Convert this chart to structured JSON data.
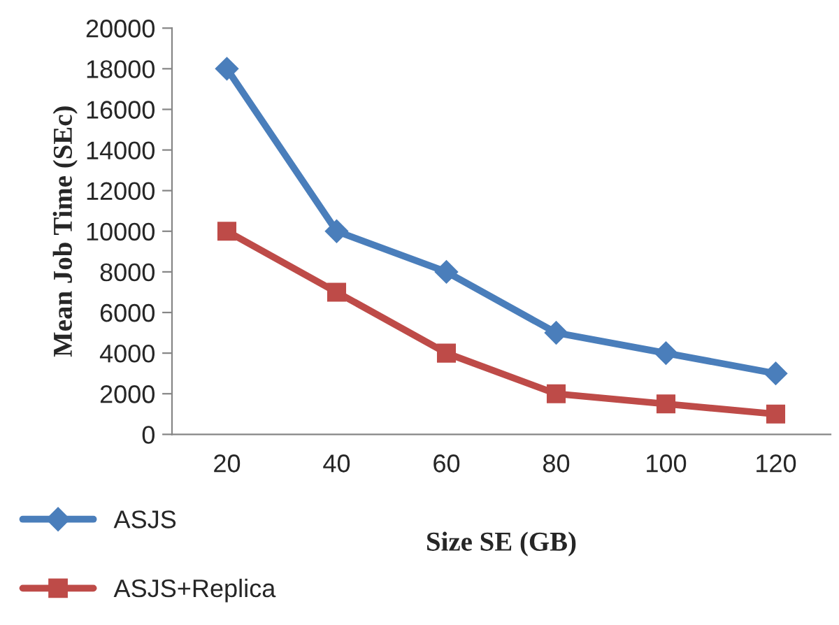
{
  "chart_data": {
    "type": "line",
    "xlabel": "Size SE (GB)",
    "ylabel": "Mean Job Time (SEc)",
    "categories": [
      "20",
      "40",
      "60",
      "80",
      "100",
      "120"
    ],
    "series": [
      {
        "name": "ASJS",
        "color": "#4a7ebb",
        "marker": "diamond",
        "values": [
          18000,
          10000,
          8000,
          5000,
          4000,
          3000
        ]
      },
      {
        "name": "ASJS+Replica",
        "color": "#be4b48",
        "marker": "square",
        "values": [
          10000,
          7000,
          4000,
          2000,
          1500,
          1000
        ]
      }
    ],
    "ylim": [
      0,
      20000
    ],
    "yticks": [
      0,
      2000,
      4000,
      6000,
      8000,
      10000,
      12000,
      14000,
      16000,
      18000,
      20000
    ],
    "grid": false,
    "legend": "bottom left",
    "line_style": "solid"
  }
}
